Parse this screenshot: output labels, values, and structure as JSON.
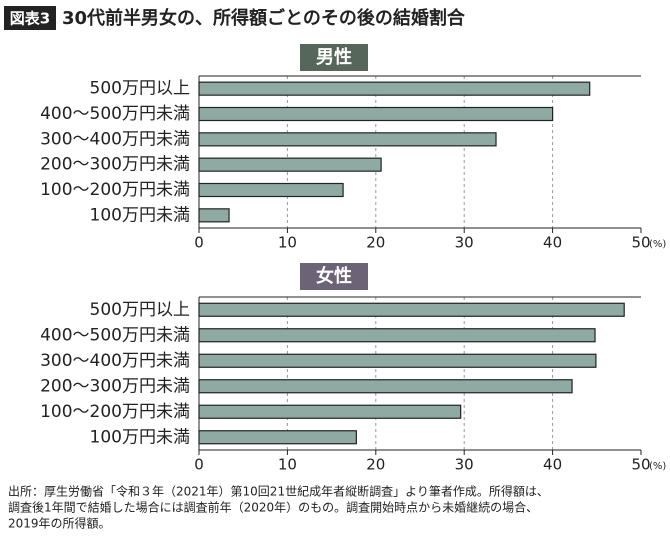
{
  "header": {
    "badge": "図表3",
    "title": "30代前半男女の、所得額ごとのその後の結婚割合"
  },
  "chart_data": [
    {
      "type": "bar",
      "orientation": "horizontal",
      "title": "男性",
      "title_color": "#56665b",
      "categories": [
        "500万円以上",
        "400～500万円未満",
        "300～400万円未満",
        "200～300万円未満",
        "100～200万円未満",
        "100万円未満"
      ],
      "values": [
        44.2,
        40.0,
        33.6,
        20.6,
        16.3,
        3.4
      ],
      "color": "#8eaaa3",
      "xlim": [
        0,
        50
      ],
      "xticks": [
        0,
        10,
        20,
        30,
        40,
        50
      ],
      "x_unit": "(%)",
      "grid": true
    },
    {
      "type": "bar",
      "orientation": "horizontal",
      "title": "女性",
      "title_color": "#6c6376",
      "categories": [
        "500万円以上",
        "400～500万円未満",
        "300～400万円未満",
        "200～300万円未満",
        "100～200万円未満",
        "100万円未満"
      ],
      "values": [
        48.1,
        44.8,
        44.9,
        42.2,
        29.6,
        17.8
      ],
      "color": "#8eaaa3",
      "xlim": [
        0,
        50
      ],
      "xticks": [
        0,
        10,
        20,
        30,
        40,
        50
      ],
      "x_unit": "(%)",
      "grid": true
    }
  ],
  "source": [
    "出所：厚生労働省「令和３年（2021年）第10回21世紀成年者縦断調査」より筆者作成。所得額は、",
    "調査後1年間で結婚した場合には調査前年（2020年）のもの。調査開始時点から未婚継続の場合、",
    "2019年の所得額。"
  ]
}
